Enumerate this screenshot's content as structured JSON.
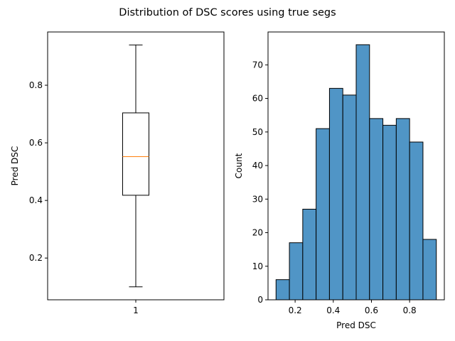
{
  "chart_data": {
    "title": "Distribution of DSC scores using true segs",
    "colors": {
      "box_median": "#ff7f0e",
      "hist_fill": "#5095c6",
      "edges": "#000000"
    },
    "panels": [
      {
        "type": "box",
        "xlabel": "",
        "ylabel": "Pred DSC",
        "categories": [
          "1"
        ],
        "ylim": [
          0.055,
          0.985
        ],
        "yticks": [
          0.2,
          0.4,
          0.6,
          0.8
        ],
        "ytick_labels": [
          "0.2",
          "0.4",
          "0.6",
          "0.8"
        ],
        "box": {
          "whisker_low": 0.1,
          "q1": 0.418,
          "median": 0.552,
          "q3": 0.704,
          "whisker_high": 0.94
        },
        "grid": false
      },
      {
        "type": "histogram",
        "xlabel": "Pred DSC",
        "ylabel": "Count",
        "xlim": [
          0.058,
          0.982
        ],
        "ylim": [
          0,
          79.8
        ],
        "xticks": [
          0.2,
          0.4,
          0.6,
          0.8
        ],
        "xtick_labels": [
          "0.2",
          "0.4",
          "0.6",
          "0.8"
        ],
        "yticks": [
          0,
          10,
          20,
          30,
          40,
          50,
          60,
          70
        ],
        "ytick_labels": [
          "0",
          "10",
          "20",
          "30",
          "40",
          "50",
          "60",
          "70"
        ],
        "bin_edges": [
          0.1,
          0.17,
          0.24,
          0.31,
          0.38,
          0.45,
          0.52,
          0.59,
          0.66,
          0.73,
          0.8,
          0.87,
          0.94
        ],
        "counts": [
          6,
          17,
          27,
          51,
          63,
          61,
          76,
          54,
          52,
          54,
          47,
          18
        ],
        "grid": false
      }
    ]
  }
}
